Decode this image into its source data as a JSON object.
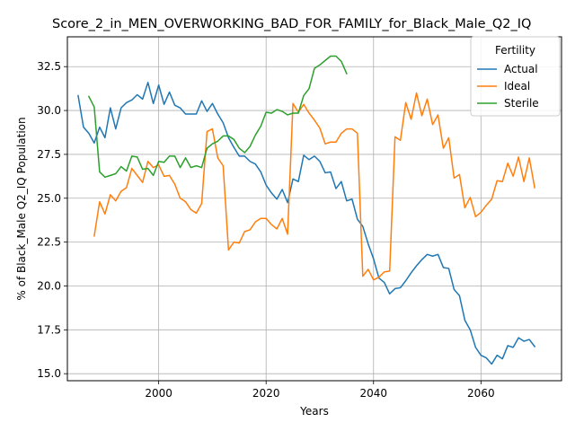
{
  "chart_data": {
    "type": "line",
    "title": "Score_2_in_MEN_OVERWORKING_BAD_FOR_FAMILY_for_Black_Male_Q2_IQ",
    "xlabel": "Years",
    "ylabel": "% of Black_Male Q2_IQ Population",
    "xlim": [
      1983,
      2075
    ],
    "ylim": [
      14.6,
      34.2
    ],
    "x_ticks": [
      "2000",
      "2020",
      "2040",
      "2060"
    ],
    "y_ticks": [
      "15.0",
      "17.5",
      "20.0",
      "22.5",
      "25.0",
      "27.5",
      "30.0",
      "32.5"
    ],
    "grid": true,
    "legend": {
      "title": "Fertility",
      "placement": "top-right"
    },
    "series": [
      {
        "name": "Actual",
        "color": "#1f77b4",
        "points": [
          [
            1985,
            30.85
          ],
          [
            1986,
            29.05
          ],
          [
            1987,
            28.7
          ],
          [
            1988,
            28.15
          ],
          [
            1989,
            29.05
          ],
          [
            1990,
            28.45
          ],
          [
            1991,
            30.15
          ],
          [
            1992,
            28.95
          ],
          [
            1993,
            30.15
          ],
          [
            1994,
            30.45
          ],
          [
            1995,
            30.6
          ],
          [
            1996,
            30.9
          ],
          [
            1997,
            30.65
          ],
          [
            1998,
            31.6
          ],
          [
            1999,
            30.4
          ],
          [
            2000,
            31.45
          ],
          [
            2001,
            30.35
          ],
          [
            2002,
            31.05
          ],
          [
            2003,
            30.3
          ],
          [
            2004,
            30.15
          ],
          [
            2005,
            29.8
          ],
          [
            2006,
            29.8
          ],
          [
            2007,
            29.8
          ],
          [
            2008,
            30.55
          ],
          [
            2009,
            29.95
          ],
          [
            2010,
            30.4
          ],
          [
            2011,
            29.8
          ],
          [
            2012,
            29.3
          ],
          [
            2013,
            28.45
          ],
          [
            2014,
            27.9
          ],
          [
            2015,
            27.4
          ],
          [
            2016,
            27.4
          ],
          [
            2017,
            27.1
          ],
          [
            2018,
            26.95
          ],
          [
            2019,
            26.5
          ],
          [
            2020,
            25.75
          ],
          [
            2021,
            25.3
          ],
          [
            2022,
            24.95
          ],
          [
            2023,
            25.5
          ],
          [
            2024,
            24.75
          ],
          [
            2025,
            26.1
          ],
          [
            2026,
            25.95
          ],
          [
            2027,
            27.45
          ],
          [
            2028,
            27.2
          ],
          [
            2029,
            27.4
          ],
          [
            2030,
            27.1
          ],
          [
            2031,
            26.45
          ],
          [
            2032,
            26.5
          ],
          [
            2033,
            25.55
          ],
          [
            2034,
            25.95
          ],
          [
            2035,
            24.85
          ],
          [
            2036,
            24.95
          ],
          [
            2037,
            23.8
          ],
          [
            2038,
            23.4
          ],
          [
            2039,
            22.4
          ],
          [
            2040,
            21.55
          ],
          [
            2041,
            20.45
          ],
          [
            2042,
            20.2
          ],
          [
            2043,
            19.55
          ],
          [
            2044,
            19.85
          ],
          [
            2045,
            19.9
          ],
          [
            2046,
            20.3
          ],
          [
            2047,
            20.75
          ],
          [
            2048,
            21.15
          ],
          [
            2049,
            21.5
          ],
          [
            2050,
            21.8
          ],
          [
            2051,
            21.7
          ],
          [
            2052,
            21.8
          ],
          [
            2053,
            21.05
          ],
          [
            2054,
            21.0
          ],
          [
            2055,
            19.8
          ],
          [
            2056,
            19.45
          ],
          [
            2057,
            18.05
          ],
          [
            2058,
            17.5
          ],
          [
            2059,
            16.5
          ],
          [
            2060,
            16.05
          ],
          [
            2061,
            15.9
          ],
          [
            2062,
            15.55
          ],
          [
            2063,
            16.05
          ],
          [
            2064,
            15.85
          ],
          [
            2065,
            16.6
          ],
          [
            2066,
            16.5
          ],
          [
            2067,
            17.05
          ],
          [
            2068,
            16.85
          ],
          [
            2069,
            16.95
          ],
          [
            2070,
            16.55
          ]
        ]
      },
      {
        "name": "Ideal",
        "color": "#ff7f0e",
        "points": [
          [
            1988,
            22.85
          ],
          [
            1989,
            24.8
          ],
          [
            1990,
            24.1
          ],
          [
            1991,
            25.2
          ],
          [
            1992,
            24.85
          ],
          [
            1993,
            25.4
          ],
          [
            1994,
            25.6
          ],
          [
            1995,
            26.7
          ],
          [
            1996,
            26.3
          ],
          [
            1997,
            25.9
          ],
          [
            1998,
            27.1
          ],
          [
            1999,
            26.75
          ],
          [
            2000,
            26.9
          ],
          [
            2001,
            26.25
          ],
          [
            2002,
            26.3
          ],
          [
            2003,
            25.8
          ],
          [
            2004,
            25.0
          ],
          [
            2005,
            24.8
          ],
          [
            2006,
            24.35
          ],
          [
            2007,
            24.15
          ],
          [
            2008,
            24.7
          ],
          [
            2009,
            28.8
          ],
          [
            2010,
            28.95
          ],
          [
            2011,
            27.3
          ],
          [
            2012,
            26.85
          ],
          [
            2013,
            22.05
          ],
          [
            2014,
            22.5
          ],
          [
            2015,
            22.45
          ],
          [
            2016,
            23.1
          ],
          [
            2017,
            23.2
          ],
          [
            2018,
            23.65
          ],
          [
            2019,
            23.85
          ],
          [
            2020,
            23.85
          ],
          [
            2021,
            23.5
          ],
          [
            2022,
            23.25
          ],
          [
            2023,
            23.85
          ],
          [
            2024,
            22.95
          ],
          [
            2025,
            30.4
          ],
          [
            2026,
            29.9
          ],
          [
            2027,
            30.35
          ],
          [
            2028,
            29.85
          ],
          [
            2029,
            29.45
          ],
          [
            2030,
            29.0
          ],
          [
            2031,
            28.1
          ],
          [
            2032,
            28.2
          ],
          [
            2033,
            28.2
          ],
          [
            2034,
            28.7
          ],
          [
            2035,
            28.95
          ],
          [
            2036,
            28.95
          ],
          [
            2037,
            28.7
          ],
          [
            2038,
            20.55
          ],
          [
            2039,
            20.95
          ],
          [
            2040,
            20.35
          ],
          [
            2041,
            20.5
          ],
          [
            2042,
            20.8
          ],
          [
            2043,
            20.85
          ],
          [
            2044,
            28.5
          ],
          [
            2045,
            28.3
          ],
          [
            2046,
            30.45
          ],
          [
            2047,
            29.5
          ],
          [
            2048,
            31.0
          ],
          [
            2049,
            29.7
          ],
          [
            2050,
            30.65
          ],
          [
            2051,
            29.2
          ],
          [
            2052,
            29.75
          ],
          [
            2053,
            27.85
          ],
          [
            2054,
            28.45
          ],
          [
            2055,
            26.15
          ],
          [
            2056,
            26.35
          ],
          [
            2057,
            24.45
          ],
          [
            2058,
            25.05
          ],
          [
            2059,
            23.95
          ],
          [
            2060,
            24.2
          ],
          [
            2061,
            24.6
          ],
          [
            2062,
            24.95
          ],
          [
            2063,
            26.0
          ],
          [
            2064,
            25.95
          ],
          [
            2065,
            27.0
          ],
          [
            2066,
            26.25
          ],
          [
            2067,
            27.35
          ],
          [
            2068,
            25.95
          ],
          [
            2069,
            27.3
          ],
          [
            2070,
            25.6
          ]
        ]
      },
      {
        "name": "Sterile",
        "color": "#2ca02c",
        "points": [
          [
            1987,
            30.8
          ],
          [
            1988,
            30.2
          ],
          [
            1989,
            26.5
          ],
          [
            1990,
            26.2
          ],
          [
            1991,
            26.3
          ],
          [
            1992,
            26.4
          ],
          [
            1993,
            26.8
          ],
          [
            1994,
            26.55
          ],
          [
            1995,
            27.4
          ],
          [
            1996,
            27.35
          ],
          [
            1997,
            26.65
          ],
          [
            1998,
            26.7
          ],
          [
            1999,
            26.3
          ],
          [
            2000,
            27.1
          ],
          [
            2001,
            27.05
          ],
          [
            2002,
            27.4
          ],
          [
            2003,
            27.4
          ],
          [
            2004,
            26.75
          ],
          [
            2005,
            27.3
          ],
          [
            2006,
            26.75
          ],
          [
            2007,
            26.85
          ],
          [
            2008,
            26.75
          ],
          [
            2009,
            27.85
          ],
          [
            2010,
            28.1
          ],
          [
            2011,
            28.25
          ],
          [
            2012,
            28.55
          ],
          [
            2013,
            28.55
          ],
          [
            2014,
            28.35
          ],
          [
            2015,
            27.85
          ],
          [
            2016,
            27.6
          ],
          [
            2017,
            27.95
          ],
          [
            2018,
            28.6
          ],
          [
            2019,
            29.1
          ],
          [
            2020,
            29.9
          ],
          [
            2021,
            29.85
          ],
          [
            2022,
            30.05
          ],
          [
            2023,
            29.95
          ],
          [
            2024,
            29.75
          ],
          [
            2025,
            29.85
          ],
          [
            2026,
            29.85
          ],
          [
            2027,
            30.85
          ],
          [
            2028,
            31.25
          ],
          [
            2029,
            32.4
          ],
          [
            2030,
            32.6
          ],
          [
            2031,
            32.85
          ],
          [
            2032,
            33.1
          ],
          [
            2033,
            33.1
          ],
          [
            2034,
            32.8
          ],
          [
            2035,
            32.1
          ]
        ]
      }
    ]
  }
}
